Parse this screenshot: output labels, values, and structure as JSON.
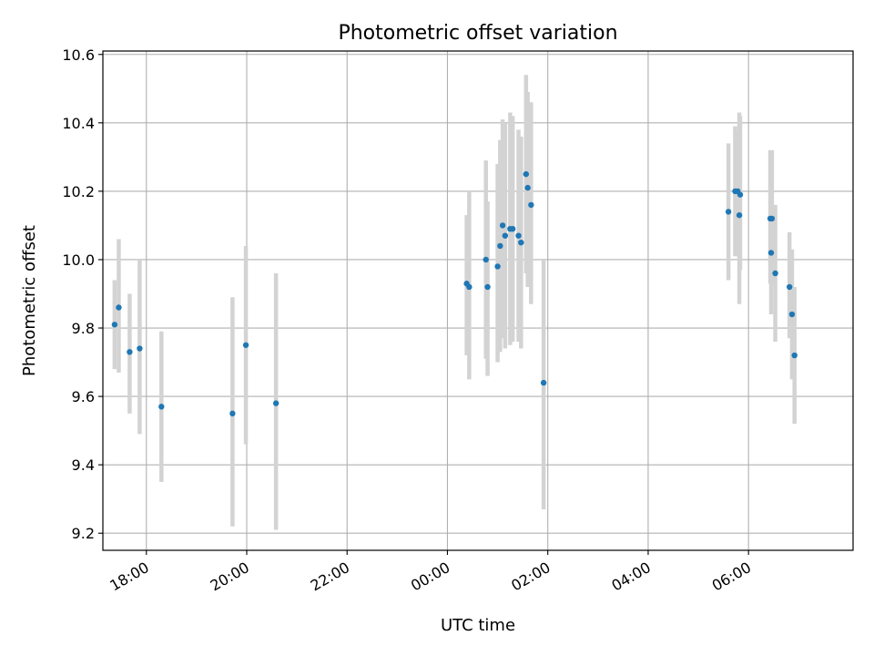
{
  "chart_data": {
    "type": "scatter",
    "title": "Photometric offset variation",
    "xlabel": "UTC time",
    "ylabel": "Photometric offset",
    "x_unit": "UTC time of day; values past 24:00 continue into the next day",
    "xlim": [
      "17:08",
      "32:05"
    ],
    "ylim": [
      9.15,
      10.61
    ],
    "xticks": [
      "18:00",
      "20:00",
      "22:00",
      "00:00",
      "02:00",
      "04:00",
      "06:00"
    ],
    "yticks": [
      "9.2",
      "9.4",
      "9.6",
      "9.8",
      "10.0",
      "10.2",
      "10.4",
      "10.6"
    ],
    "grid": true,
    "marker_color": "#1f77b4",
    "errorbar_color": "#d3d3d3",
    "points": [
      {
        "t": "17:22",
        "y": 9.81,
        "ylow": 9.68,
        "yhigh": 9.94
      },
      {
        "t": "17:27",
        "y": 9.86,
        "ylow": 9.67,
        "yhigh": 10.06
      },
      {
        "t": "17:40",
        "y": 9.73,
        "ylow": 9.55,
        "yhigh": 9.9
      },
      {
        "t": "17:52",
        "y": 9.74,
        "ylow": 9.49,
        "yhigh": 10.0
      },
      {
        "t": "18:18",
        "y": 9.57,
        "ylow": 9.35,
        "yhigh": 9.79
      },
      {
        "t": "19:43",
        "y": 9.55,
        "ylow": 9.22,
        "yhigh": 9.89
      },
      {
        "t": "19:59",
        "y": 9.75,
        "ylow": 9.46,
        "yhigh": 10.04
      },
      {
        "t": "20:35",
        "y": 9.58,
        "ylow": 9.21,
        "yhigh": 9.96
      },
      {
        "t": "24:23",
        "y": 9.93,
        "ylow": 9.72,
        "yhigh": 10.13
      },
      {
        "t": "24:26",
        "y": 9.92,
        "ylow": 9.65,
        "yhigh": 10.2
      },
      {
        "t": "24:46",
        "y": 10.0,
        "ylow": 9.71,
        "yhigh": 10.29
      },
      {
        "t": "24:48",
        "y": 9.92,
        "ylow": 9.66,
        "yhigh": 10.17
      },
      {
        "t": "25:00",
        "y": 9.98,
        "ylow": 9.7,
        "yhigh": 10.28
      },
      {
        "t": "25:03",
        "y": 10.04,
        "ylow": 9.73,
        "yhigh": 10.35
      },
      {
        "t": "25:06",
        "y": 10.1,
        "ylow": 9.77,
        "yhigh": 10.41
      },
      {
        "t": "25:09",
        "y": 10.07,
        "ylow": 9.74,
        "yhigh": 10.4
      },
      {
        "t": "25:15",
        "y": 10.09,
        "ylow": 9.75,
        "yhigh": 10.43
      },
      {
        "t": "25:18",
        "y": 10.09,
        "ylow": 9.76,
        "yhigh": 10.42
      },
      {
        "t": "25:25",
        "y": 10.07,
        "ylow": 9.76,
        "yhigh": 10.38
      },
      {
        "t": "25:28",
        "y": 10.05,
        "ylow": 9.74,
        "yhigh": 10.36
      },
      {
        "t": "25:34",
        "y": 10.25,
        "ylow": 9.96,
        "yhigh": 10.54
      },
      {
        "t": "25:36",
        "y": 10.21,
        "ylow": 9.92,
        "yhigh": 10.49
      },
      {
        "t": "25:40",
        "y": 10.16,
        "ylow": 9.87,
        "yhigh": 10.46
      },
      {
        "t": "25:55",
        "y": 9.64,
        "ylow": 9.27,
        "yhigh": 10.0
      },
      {
        "t": "29:36",
        "y": 10.14,
        "ylow": 9.94,
        "yhigh": 10.34
      },
      {
        "t": "29:44",
        "y": 10.2,
        "ylow": 10.01,
        "yhigh": 10.39
      },
      {
        "t": "29:47",
        "y": 10.2,
        "ylow": 10.01,
        "yhigh": 10.38
      },
      {
        "t": "29:49",
        "y": 10.13,
        "ylow": 9.87,
        "yhigh": 10.43
      },
      {
        "t": "29:50",
        "y": 10.19,
        "ylow": 9.97,
        "yhigh": 10.42
      },
      {
        "t": "30:26",
        "y": 10.12,
        "ylow": 9.93,
        "yhigh": 10.32
      },
      {
        "t": "30:27",
        "y": 10.02,
        "ylow": 9.84,
        "yhigh": 10.21
      },
      {
        "t": "30:28",
        "y": 10.12,
        "ylow": 9.93,
        "yhigh": 10.32
      },
      {
        "t": "30:32",
        "y": 9.96,
        "ylow": 9.76,
        "yhigh": 10.16
      },
      {
        "t": "30:49",
        "y": 9.92,
        "ylow": 9.77,
        "yhigh": 10.08
      },
      {
        "t": "30:52",
        "y": 9.84,
        "ylow": 9.65,
        "yhigh": 10.03
      },
      {
        "t": "30:55",
        "y": 9.72,
        "ylow": 9.52,
        "yhigh": 9.92
      }
    ]
  }
}
